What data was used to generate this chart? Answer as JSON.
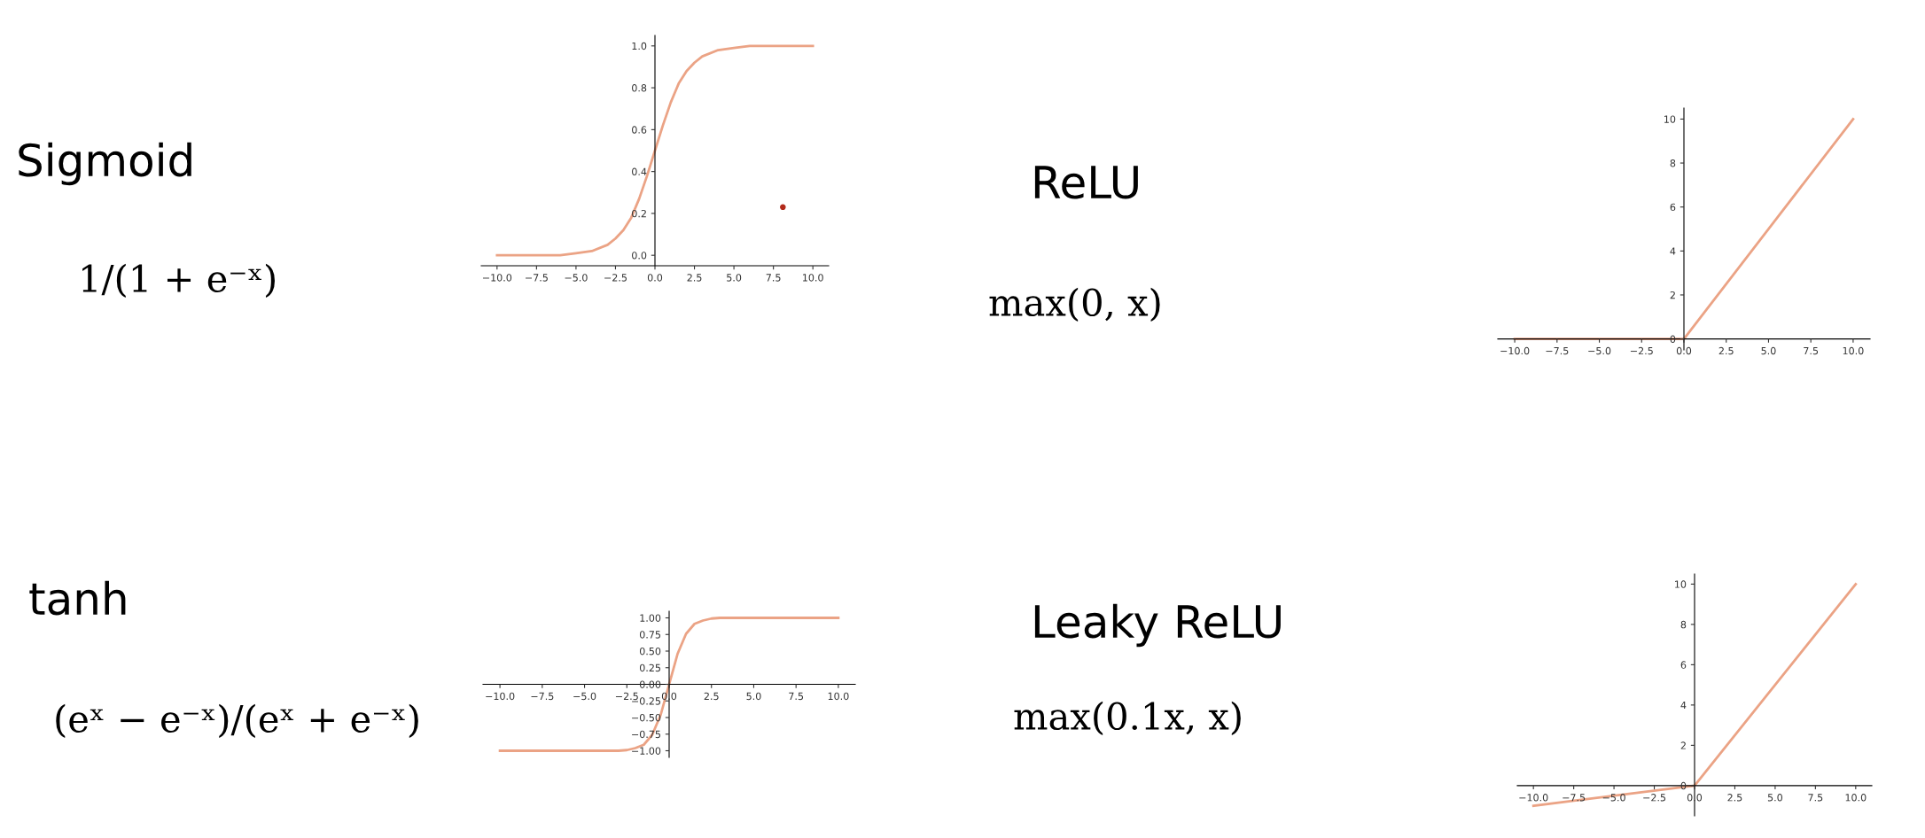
{
  "chart_data": [
    {
      "type": "line",
      "annotations": [
        "Sigmoid",
        "1/(1 + e⁻ˣ)"
      ],
      "x": [
        -10,
        -8,
        -6,
        -5,
        -4,
        -3,
        -2.5,
        -2,
        -1.5,
        -1,
        -0.5,
        0,
        0.5,
        1,
        1.5,
        2,
        2.5,
        3,
        4,
        5,
        6,
        8,
        10
      ],
      "series": [
        {
          "color": "#eba385",
          "values": [
            0.0,
            0.0,
            0.0,
            0.01,
            0.02,
            0.05,
            0.08,
            0.12,
            0.18,
            0.27,
            0.38,
            0.5,
            0.62,
            0.73,
            0.82,
            0.88,
            0.92,
            0.95,
            0.98,
            0.99,
            1.0,
            1.0,
            1.0
          ]
        },
        {
          "type": "scatter",
          "color": "#b22a1a",
          "x": [
            8.1
          ],
          "values": [
            0.23
          ]
        }
      ],
      "xlim": [
        -11,
        11
      ],
      "ylim": [
        -0.05,
        1.05
      ],
      "xticks": [
        {
          "value": -10,
          "label": "−10.0"
        },
        {
          "value": -7.5,
          "label": "−7.5"
        },
        {
          "value": -5,
          "label": "−5.0"
        },
        {
          "value": -2.5,
          "label": "−2.5"
        },
        {
          "value": 0,
          "label": "0.0"
        },
        {
          "value": 2.5,
          "label": "2.5"
        },
        {
          "value": 5,
          "label": "5.0"
        },
        {
          "value": 7.5,
          "label": "7.5"
        },
        {
          "value": 10,
          "label": "10.0"
        }
      ],
      "yticks": [
        {
          "value": 0,
          "label": "0.0"
        },
        {
          "value": 0.2,
          "label": "0.2"
        },
        {
          "value": 0.4,
          "label": "0.4"
        },
        {
          "value": 0.6,
          "label": "0.6"
        },
        {
          "value": 0.8,
          "label": "0.8"
        },
        {
          "value": 1,
          "label": "1.0"
        }
      ],
      "grid": false,
      "legend": false
    },
    {
      "type": "line",
      "annotations": [
        "ReLU",
        "max(0, x)"
      ],
      "x": [
        -10,
        0,
        10
      ],
      "series": [
        {
          "color": "#eba385",
          "values": [
            0,
            0,
            10
          ]
        }
      ],
      "xlim": [
        -11,
        11
      ],
      "ylim": [
        -0.5,
        10.5
      ],
      "xticks": [
        {
          "value": -10,
          "label": "−10.0"
        },
        {
          "value": -7.5,
          "label": "−7.5"
        },
        {
          "value": -5,
          "label": "−5.0"
        },
        {
          "value": -2.5,
          "label": "−2.5"
        },
        {
          "value": 0,
          "label": "0.0"
        },
        {
          "value": 2.5,
          "label": "2.5"
        },
        {
          "value": 5,
          "label": "5.0"
        },
        {
          "value": 7.5,
          "label": "7.5"
        },
        {
          "value": 10,
          "label": "10.0"
        }
      ],
      "yticks": [
        0,
        2,
        4,
        6,
        8,
        10
      ],
      "grid": false,
      "legend": false
    },
    {
      "type": "line",
      "annotations": [
        "tanh",
        "(eˣ − e⁻ˣ)/(eˣ + e⁻ˣ)"
      ],
      "x": [
        -10,
        -4,
        -3,
        -2.5,
        -2,
        -1.5,
        -1,
        -0.5,
        0,
        0.5,
        1,
        1.5,
        2,
        2.5,
        3,
        4,
        10
      ],
      "series": [
        {
          "color": "#eba385",
          "values": [
            -1,
            -1,
            -1.0,
            -0.99,
            -0.96,
            -0.91,
            -0.76,
            -0.46,
            0,
            0.46,
            0.76,
            0.91,
            0.96,
            0.99,
            1.0,
            1,
            1
          ]
        }
      ],
      "xlim": [
        -11,
        11
      ],
      "ylim": [
        -1.1,
        1.1
      ],
      "xticks": [
        {
          "value": -10,
          "label": "−10.0"
        },
        {
          "value": -7.5,
          "label": "−7.5"
        },
        {
          "value": -5,
          "label": "−5.0"
        },
        {
          "value": -2.5,
          "label": "−2.5"
        },
        {
          "value": 0,
          "label": "0.0"
        },
        {
          "value": 2.5,
          "label": "2.5"
        },
        {
          "value": 5,
          "label": "5.0"
        },
        {
          "value": 7.5,
          "label": "7.5"
        },
        {
          "value": 10,
          "label": "10.0"
        }
      ],
      "yticks": [
        {
          "value": -1,
          "label": "−1.00"
        },
        {
          "value": -0.75,
          "label": "−0.75"
        },
        {
          "value": -0.5,
          "label": "−0.50"
        },
        {
          "value": -0.25,
          "label": "−0.25"
        },
        {
          "value": 0,
          "label": "0.00"
        },
        {
          "value": 0.25,
          "label": "0.25"
        },
        {
          "value": 0.5,
          "label": "0.50"
        },
        {
          "value": 0.75,
          "label": "0.75"
        },
        {
          "value": 1,
          "label": "1.00"
        }
      ],
      "grid": false,
      "legend": false
    },
    {
      "type": "line",
      "annotations": [
        "Leaky ReLU",
        "max(0.1x, x)"
      ],
      "x": [
        -10,
        0,
        10
      ],
      "series": [
        {
          "color": "#eba385",
          "values": [
            -1,
            0,
            10
          ]
        }
      ],
      "xlim": [
        -11,
        11
      ],
      "ylim": [
        -1.5,
        10.5
      ],
      "xticks": [
        {
          "value": -10,
          "label": "−10.0"
        },
        {
          "value": -7.5,
          "label": "−7.5"
        },
        {
          "value": -5,
          "label": "−5.0"
        },
        {
          "value": -2.5,
          "label": "−2.5"
        },
        {
          "value": 0,
          "label": "0.0"
        },
        {
          "value": 2.5,
          "label": "2.5"
        },
        {
          "value": 5,
          "label": "5.0"
        },
        {
          "value": 7.5,
          "label": "7.5"
        },
        {
          "value": 10,
          "label": "10.0"
        }
      ],
      "yticks": [
        0,
        2,
        4,
        6,
        8,
        10
      ],
      "grid": false,
      "legend": false
    }
  ]
}
